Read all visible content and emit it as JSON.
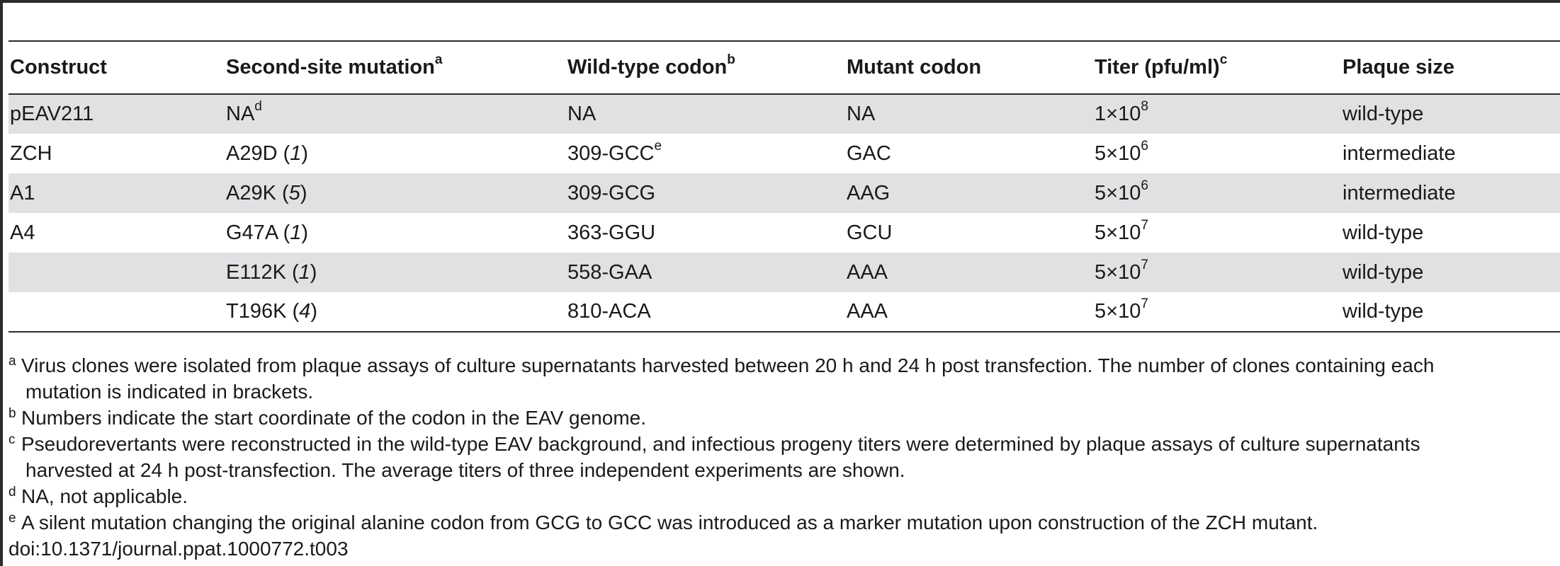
{
  "table": {
    "headers": [
      {
        "text": "Construct",
        "sup": ""
      },
      {
        "text": "Second-site mutation",
        "sup": "a"
      },
      {
        "text": "Wild-type codon",
        "sup": "b"
      },
      {
        "text": "Mutant codon",
        "sup": ""
      },
      {
        "text": "Titer (pfu/ml)",
        "sup": "c"
      },
      {
        "text": "Plaque size",
        "sup": ""
      }
    ],
    "rows": [
      {
        "construct": "pEAV211",
        "mutation": "NA",
        "mutation_sup": "d",
        "mutation_count": "",
        "wt_codon": "NA",
        "wt_sup": "",
        "mutant_codon": "NA",
        "titer_base": "1×10",
        "titer_exp": "8",
        "plaque": "wild-type"
      },
      {
        "construct": "ZCH",
        "mutation": "A29D",
        "mutation_sup": "",
        "mutation_count": "1",
        "wt_codon": "309-GCC",
        "wt_sup": "e",
        "mutant_codon": "GAC",
        "titer_base": "5×10",
        "titer_exp": "6",
        "plaque": "intermediate"
      },
      {
        "construct": "A1",
        "mutation": "A29K",
        "mutation_sup": "",
        "mutation_count": "5",
        "wt_codon": "309-GCG",
        "wt_sup": "",
        "mutant_codon": "AAG",
        "titer_base": "5×10",
        "titer_exp": "6",
        "plaque": "intermediate"
      },
      {
        "construct": "A4",
        "mutation": "G47A",
        "mutation_sup": "",
        "mutation_count": "1",
        "wt_codon": "363-GGU",
        "wt_sup": "",
        "mutant_codon": "GCU",
        "titer_base": "5×10",
        "titer_exp": "7",
        "plaque": "wild-type"
      },
      {
        "construct": "",
        "mutation": "E112K",
        "mutation_sup": "",
        "mutation_count": "1",
        "wt_codon": "558-GAA",
        "wt_sup": "",
        "mutant_codon": "AAA",
        "titer_base": "5×10",
        "titer_exp": "7",
        "plaque": "wild-type"
      },
      {
        "construct": "",
        "mutation": "T196K",
        "mutation_sup": "",
        "mutation_count": "4",
        "wt_codon": "810-ACA",
        "wt_sup": "",
        "mutant_codon": "AAA",
        "titer_base": "5×10",
        "titer_exp": "7",
        "plaque": "wild-type"
      }
    ]
  },
  "footnotes": [
    {
      "mark": "a",
      "line1": "Virus clones were isolated from plaque assays of culture supernatants harvested between 20 h and 24 h post transfection. The number of clones containing each",
      "line2": "mutation is indicated in brackets."
    },
    {
      "mark": "b",
      "line1": "Numbers indicate the start coordinate of the codon in the EAV genome.",
      "line2": ""
    },
    {
      "mark": "c",
      "line1": "Pseudorevertants were reconstructed in the wild-type EAV background, and infectious progeny titers were determined by plaque assays of culture supernatants",
      "line2": "harvested at 24 h post-transfection. The average titers of three independent experiments are shown."
    },
    {
      "mark": "d",
      "line1": "NA, not applicable.",
      "line2": ""
    },
    {
      "mark": "e",
      "line1": "A silent mutation changing the original alanine codon from GCG to GCC was introduced as a marker mutation upon construction of the ZCH mutant.",
      "line2": ""
    }
  ],
  "doi": "doi:10.1371/journal.ppat.1000772.t003",
  "colors": {
    "shade": "#e0e1e3",
    "rule": "#2b2b2b",
    "text": "#1a1a1a"
  }
}
